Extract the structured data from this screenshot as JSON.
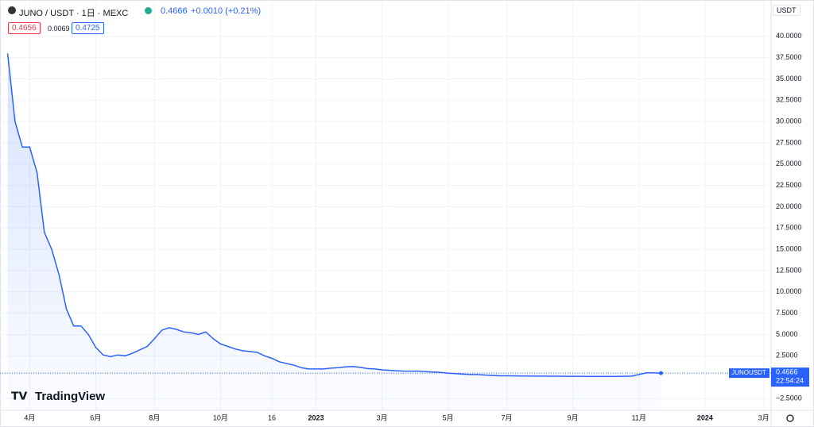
{
  "header": {
    "symbol": "JUNO / USDT · 1日 · MEXC",
    "price": "0.4666",
    "change": "+0.0010 (+0.21%)",
    "bid": "0.4656",
    "spread": "0.0069",
    "ask": "0.4725",
    "currency": "USDT",
    "logo": "TradingView"
  },
  "chart_data": {
    "type": "line",
    "categories": [
      null,
      null,
      null,
      "4月",
      null,
      null,
      null,
      null,
      null,
      null,
      null,
      null,
      "6月",
      null,
      null,
      null,
      null,
      null,
      null,
      null,
      "8月",
      null,
      null,
      null,
      null,
      null,
      null,
      null,
      null,
      "10月",
      null,
      null,
      null,
      null,
      null,
      null,
      "16",
      null,
      null,
      null,
      null,
      null,
      "2023",
      null,
      null,
      null,
      null,
      null,
      null,
      null,
      null,
      "3月",
      null,
      null,
      null,
      null,
      null,
      null,
      null,
      null,
      "5月",
      null,
      null,
      null,
      null,
      null,
      null,
      null,
      "7月",
      null,
      null,
      null,
      null,
      null,
      null,
      null,
      null,
      "9月",
      null,
      null,
      null,
      null,
      null,
      null,
      null,
      null,
      "11月",
      null,
      null,
      null,
      null,
      null,
      null,
      null,
      null,
      "2024",
      null,
      null,
      null,
      null,
      null,
      null,
      null,
      "3月",
      null
    ],
    "series": [
      {
        "name": "JUNOUSDT",
        "color": "#2962ff",
        "values": [
          38,
          30,
          27,
          27,
          24,
          17,
          15,
          12,
          8,
          6,
          6,
          5,
          3.5,
          2.6,
          2.4,
          2.6,
          2.5,
          2.8,
          3.2,
          3.6,
          4.5,
          5.5,
          5.8,
          5.6,
          5.3,
          5.2,
          5.0,
          5.3,
          4.5,
          3.9,
          3.6,
          3.3,
          3.1,
          3.0,
          2.9,
          2.5,
          2.2,
          1.8,
          1.6,
          1.4,
          1.1,
          0.95,
          0.95,
          0.95,
          1.05,
          1.1,
          1.2,
          1.25,
          1.15,
          1.0,
          0.95,
          0.85,
          0.8,
          0.75,
          0.7,
          0.7,
          0.7,
          0.65,
          0.6,
          0.55,
          0.45,
          0.4,
          0.35,
          0.3,
          0.3,
          0.25,
          0.2,
          0.15,
          0.15,
          0.14,
          0.13,
          0.13,
          0.12,
          0.12,
          0.11,
          0.11,
          0.1,
          0.1,
          0.1,
          0.09,
          0.09,
          0.08,
          0.08,
          0.09,
          0.1,
          0.12,
          0.3,
          0.5,
          0.5,
          0.4666,
          null,
          null,
          null,
          null,
          null,
          null,
          null,
          null,
          null,
          null,
          null,
          null,
          null,
          null,
          null
        ]
      }
    ],
    "price_label": "0.4666",
    "countdown": "22:54:24",
    "ylim": [
      -3.9,
      43.8
    ],
    "yticks": [
      {
        "value": -2.5,
        "label": "−2.5000"
      },
      {
        "value": 2.5,
        "label": "2.5000"
      },
      {
        "value": 5,
        "label": "5.0000"
      },
      {
        "value": 7.5,
        "label": "7.5000"
      },
      {
        "value": 10,
        "label": "10.0000"
      },
      {
        "value": 12.5,
        "label": "12.5000"
      },
      {
        "value": 15,
        "label": "15.0000"
      },
      {
        "value": 17.5,
        "label": "17.5000"
      },
      {
        "value": 20,
        "label": "20.0000"
      },
      {
        "value": 22.5,
        "label": "22.5000"
      },
      {
        "value": 25,
        "label": "25.0000"
      },
      {
        "value": 27.5,
        "label": "27.5000"
      },
      {
        "value": 30,
        "label": "30.0000"
      },
      {
        "value": 32.5,
        "label": "32.5000"
      },
      {
        "value": 35,
        "label": "35.0000"
      },
      {
        "value": 37.5,
        "label": "37.5000"
      },
      {
        "value": 40,
        "label": "40.0000"
      }
    ],
    "grid": true
  }
}
